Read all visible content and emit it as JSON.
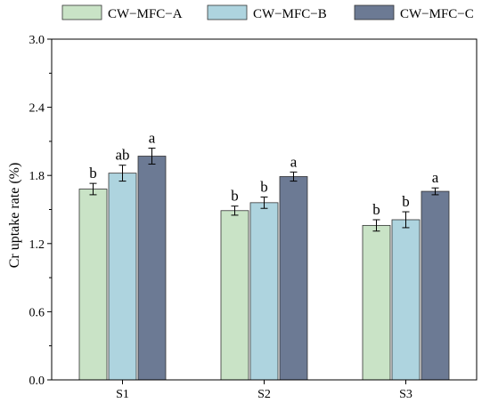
{
  "chart_data": {
    "type": "bar",
    "title": "",
    "xlabel": "",
    "ylabel": "Cr uptake rate (%)",
    "ylim": [
      0,
      3.0
    ],
    "yticks": [
      "0.0",
      "0.6",
      "1.2",
      "1.8",
      "2.4",
      "3.0"
    ],
    "grid": false,
    "legend_position": "top",
    "categories": [
      "S1",
      "S2",
      "S3"
    ],
    "series": [
      {
        "name": "CW−MFC−A",
        "color": "#c9e3c6",
        "values": [
          1.68,
          1.49,
          1.36
        ],
        "errors": [
          0.05,
          0.04,
          0.05
        ],
        "labels": [
          "b",
          "b",
          "b"
        ]
      },
      {
        "name": "CW−MFC−B",
        "color": "#aed4df",
        "values": [
          1.82,
          1.56,
          1.41
        ],
        "errors": [
          0.07,
          0.05,
          0.07
        ],
        "labels": [
          "ab",
          "b",
          "b"
        ]
      },
      {
        "name": "CW−MFC−C",
        "color": "#6c7a94",
        "values": [
          1.97,
          1.79,
          1.66
        ],
        "errors": [
          0.07,
          0.04,
          0.03
        ],
        "labels": [
          "a",
          "a",
          "a"
        ]
      }
    ]
  }
}
